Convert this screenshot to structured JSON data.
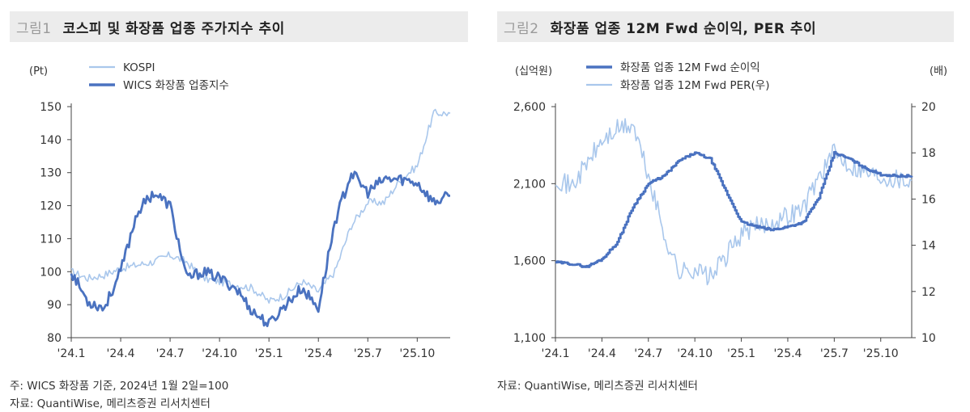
{
  "chart_data": [
    {
      "type": "line",
      "figure_no": "그림1",
      "title": "코스피 및 화장품 업종 주가지수 추이",
      "yunit": "(Pt)",
      "ylim": [
        80,
        150
      ],
      "yticks": [
        "80",
        "90",
        "100",
        "110",
        "120",
        "130",
        "140",
        "150"
      ],
      "x": [
        0,
        1,
        2,
        3,
        4,
        5,
        6,
        7,
        8,
        9,
        10,
        11,
        12,
        13,
        14,
        15,
        16,
        17,
        18,
        19,
        20,
        21,
        22,
        23
      ],
      "xticks": [
        {
          "x": 0,
          "label": "'24.1"
        },
        {
          "x": 3,
          "label": "'24.4"
        },
        {
          "x": 6,
          "label": "'24.7"
        },
        {
          "x": 9,
          "label": "'24.10"
        },
        {
          "x": 12,
          "label": "'25.1"
        },
        {
          "x": 15,
          "label": "'25.4"
        },
        {
          "x": 18,
          "label": "'25.7"
        },
        {
          "x": 21,
          "label": "'25.10"
        }
      ],
      "series": [
        {
          "name": "KOSPI",
          "color": "#a9c7ec",
          "values": [
            100,
            98,
            99,
            101,
            102,
            103,
            105,
            103,
            98,
            97,
            96,
            95,
            91,
            93,
            97,
            94,
            100,
            114,
            121,
            121,
            128,
            132,
            148,
            148
          ]
        },
        {
          "name": "WICS 화장품 업종지수",
          "color": "#4a72c0",
          "values": [
            100,
            91,
            89,
            100,
            118,
            124,
            120,
            98,
            100,
            98,
            95,
            88,
            84,
            90,
            95,
            89,
            115,
            130,
            124,
            128,
            128,
            127,
            121,
            123
          ]
        }
      ]
    },
    {
      "type": "line",
      "figure_no": "그림2",
      "title": "화장품 업종 12M Fwd 순이익, PER 추이",
      "yunit_left": "(십억원)",
      "yunit_right": "(배)",
      "ylim_left": [
        1100,
        2600
      ],
      "ylim_right": [
        10,
        20
      ],
      "yticks_left": [
        "1,100",
        "1,600",
        "2,100",
        "2,600"
      ],
      "yticks_right": [
        "10",
        "12",
        "14",
        "16",
        "18",
        "20"
      ],
      "x": [
        0,
        1,
        2,
        3,
        4,
        5,
        6,
        7,
        8,
        9,
        10,
        11,
        12,
        13,
        14,
        15,
        16,
        17,
        18,
        19,
        20,
        21,
        22,
        23
      ],
      "xticks": [
        {
          "x": 0,
          "label": "'24.1"
        },
        {
          "x": 3,
          "label": "'24.4"
        },
        {
          "x": 6,
          "label": "'24.7"
        },
        {
          "x": 9,
          "label": "'24.10"
        },
        {
          "x": 12,
          "label": "'25.1"
        },
        {
          "x": 15,
          "label": "'25.4"
        },
        {
          "x": 18,
          "label": "'25.7"
        },
        {
          "x": 21,
          "label": "'25.10"
        }
      ],
      "series": [
        {
          "name": "화장품 업종 12M Fwd 순이익",
          "axis": "left",
          "color": "#4a72c0",
          "values": [
            1590,
            1580,
            1560,
            1610,
            1720,
            1950,
            2100,
            2150,
            2250,
            2300,
            2260,
            2050,
            1850,
            1820,
            1800,
            1820,
            1850,
            2010,
            2300,
            2260,
            2200,
            2160,
            2150,
            2150
          ]
        },
        {
          "name": "화장품 업종 12M Fwd PER(우)",
          "axis": "right",
          "color": "#a9c7ec",
          "values": [
            17.0,
            16.5,
            17.5,
            18.5,
            19.0,
            19.2,
            17.0,
            14.5,
            12.8,
            13.0,
            12.6,
            13.5,
            14.5,
            14.8,
            15.0,
            15.3,
            15.6,
            17.0,
            18.0,
            17.5,
            17.2,
            17.0,
            16.9,
            16.8
          ]
        }
      ]
    }
  ],
  "notes": {
    "fig1_note": "주: WICS 화장품 기준, 2024년 1월 2일=100",
    "fig1_source": "자료: QuantiWise, 메리츠증권 리서치센터",
    "fig2_source": "자료: QuantiWise, 메리츠증권 리서치센터"
  }
}
